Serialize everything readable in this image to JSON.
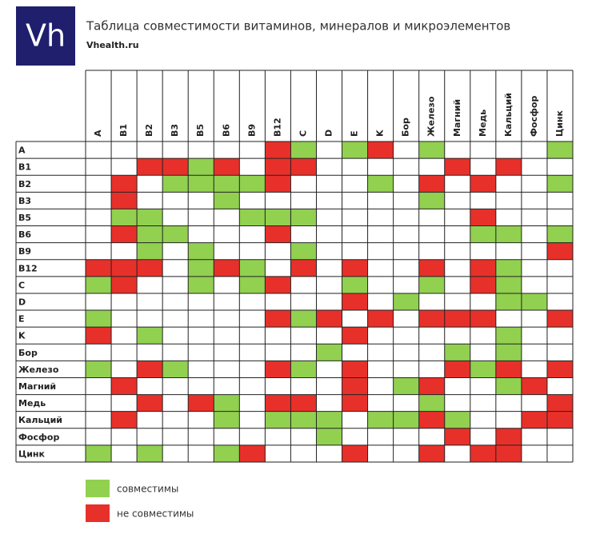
{
  "header": {
    "logo": "Vh",
    "title": "Таблица совместимости витаминов, минералов и микроэлементов",
    "site": "Vhealth.ru"
  },
  "labels": [
    "A",
    "B1",
    "B2",
    "B3",
    "B5",
    "B6",
    "B9",
    "B12",
    "C",
    "D",
    "E",
    "K",
    "Бор",
    "Железо",
    "Магний",
    "Медь",
    "Кальций",
    "Фосфор",
    "Цинк"
  ],
  "legend": [
    {
      "label": "совместимы",
      "color": "#92d050"
    },
    {
      "label": "не совместимы",
      "color": "#e8302a"
    }
  ],
  "matrix": [
    [
      null,
      null,
      null,
      null,
      null,
      null,
      null,
      1,
      0,
      null,
      0,
      1,
      null,
      0,
      null,
      null,
      null,
      null,
      0
    ],
    [
      null,
      null,
      1,
      1,
      0,
      1,
      null,
      1,
      1,
      null,
      null,
      null,
      null,
      null,
      1,
      null,
      1,
      null,
      null
    ],
    [
      null,
      1,
      null,
      0,
      0,
      0,
      0,
      1,
      null,
      null,
      null,
      0,
      null,
      1,
      null,
      1,
      null,
      null,
      0
    ],
    [
      null,
      1,
      null,
      null,
      null,
      0,
      null,
      null,
      null,
      null,
      null,
      null,
      null,
      0,
      null,
      null,
      null,
      null,
      null
    ],
    [
      null,
      0,
      0,
      null,
      null,
      null,
      0,
      0,
      0,
      null,
      null,
      null,
      null,
      null,
      null,
      1,
      null,
      null,
      null
    ],
    [
      null,
      1,
      0,
      0,
      null,
      null,
      null,
      1,
      null,
      null,
      null,
      null,
      null,
      null,
      null,
      0,
      0,
      null,
      0
    ],
    [
      null,
      null,
      0,
      null,
      0,
      null,
      null,
      null,
      0,
      null,
      null,
      null,
      null,
      null,
      null,
      null,
      null,
      null,
      1
    ],
    [
      1,
      1,
      1,
      null,
      0,
      1,
      0,
      null,
      1,
      null,
      1,
      null,
      null,
      1,
      null,
      1,
      0,
      null,
      null
    ],
    [
      0,
      1,
      null,
      null,
      0,
      null,
      0,
      1,
      null,
      null,
      0,
      null,
      null,
      0,
      null,
      1,
      0,
      null,
      null
    ],
    [
      null,
      null,
      null,
      null,
      null,
      null,
      null,
      null,
      null,
      null,
      1,
      null,
      0,
      null,
      null,
      null,
      0,
      0,
      null
    ],
    [
      0,
      null,
      null,
      null,
      null,
      null,
      null,
      1,
      0,
      1,
      null,
      1,
      null,
      1,
      1,
      1,
      null,
      null,
      1
    ],
    [
      1,
      null,
      0,
      null,
      null,
      null,
      null,
      null,
      null,
      null,
      1,
      null,
      null,
      null,
      null,
      null,
      0,
      null,
      null
    ],
    [
      null,
      null,
      null,
      null,
      null,
      null,
      null,
      null,
      null,
      0,
      null,
      null,
      null,
      null,
      0,
      null,
      0,
      null,
      null
    ],
    [
      0,
      null,
      1,
      0,
      null,
      null,
      null,
      1,
      0,
      null,
      1,
      null,
      null,
      null,
      1,
      0,
      1,
      null,
      1
    ],
    [
      null,
      1,
      null,
      null,
      null,
      null,
      null,
      null,
      null,
      null,
      1,
      null,
      0,
      1,
      null,
      null,
      0,
      1,
      null
    ],
    [
      null,
      null,
      1,
      null,
      1,
      0,
      null,
      1,
      1,
      null,
      1,
      null,
      null,
      0,
      null,
      null,
      null,
      null,
      1
    ],
    [
      null,
      1,
      null,
      null,
      null,
      0,
      null,
      0,
      0,
      0,
      null,
      0,
      0,
      1,
      0,
      null,
      null,
      1,
      1
    ],
    [
      null,
      null,
      null,
      null,
      null,
      null,
      null,
      null,
      null,
      0,
      null,
      null,
      null,
      null,
      1,
      null,
      1,
      null,
      null
    ],
    [
      0,
      null,
      0,
      null,
      null,
      0,
      1,
      null,
      null,
      null,
      1,
      null,
      null,
      1,
      null,
      1,
      1,
      null,
      null
    ]
  ]
}
